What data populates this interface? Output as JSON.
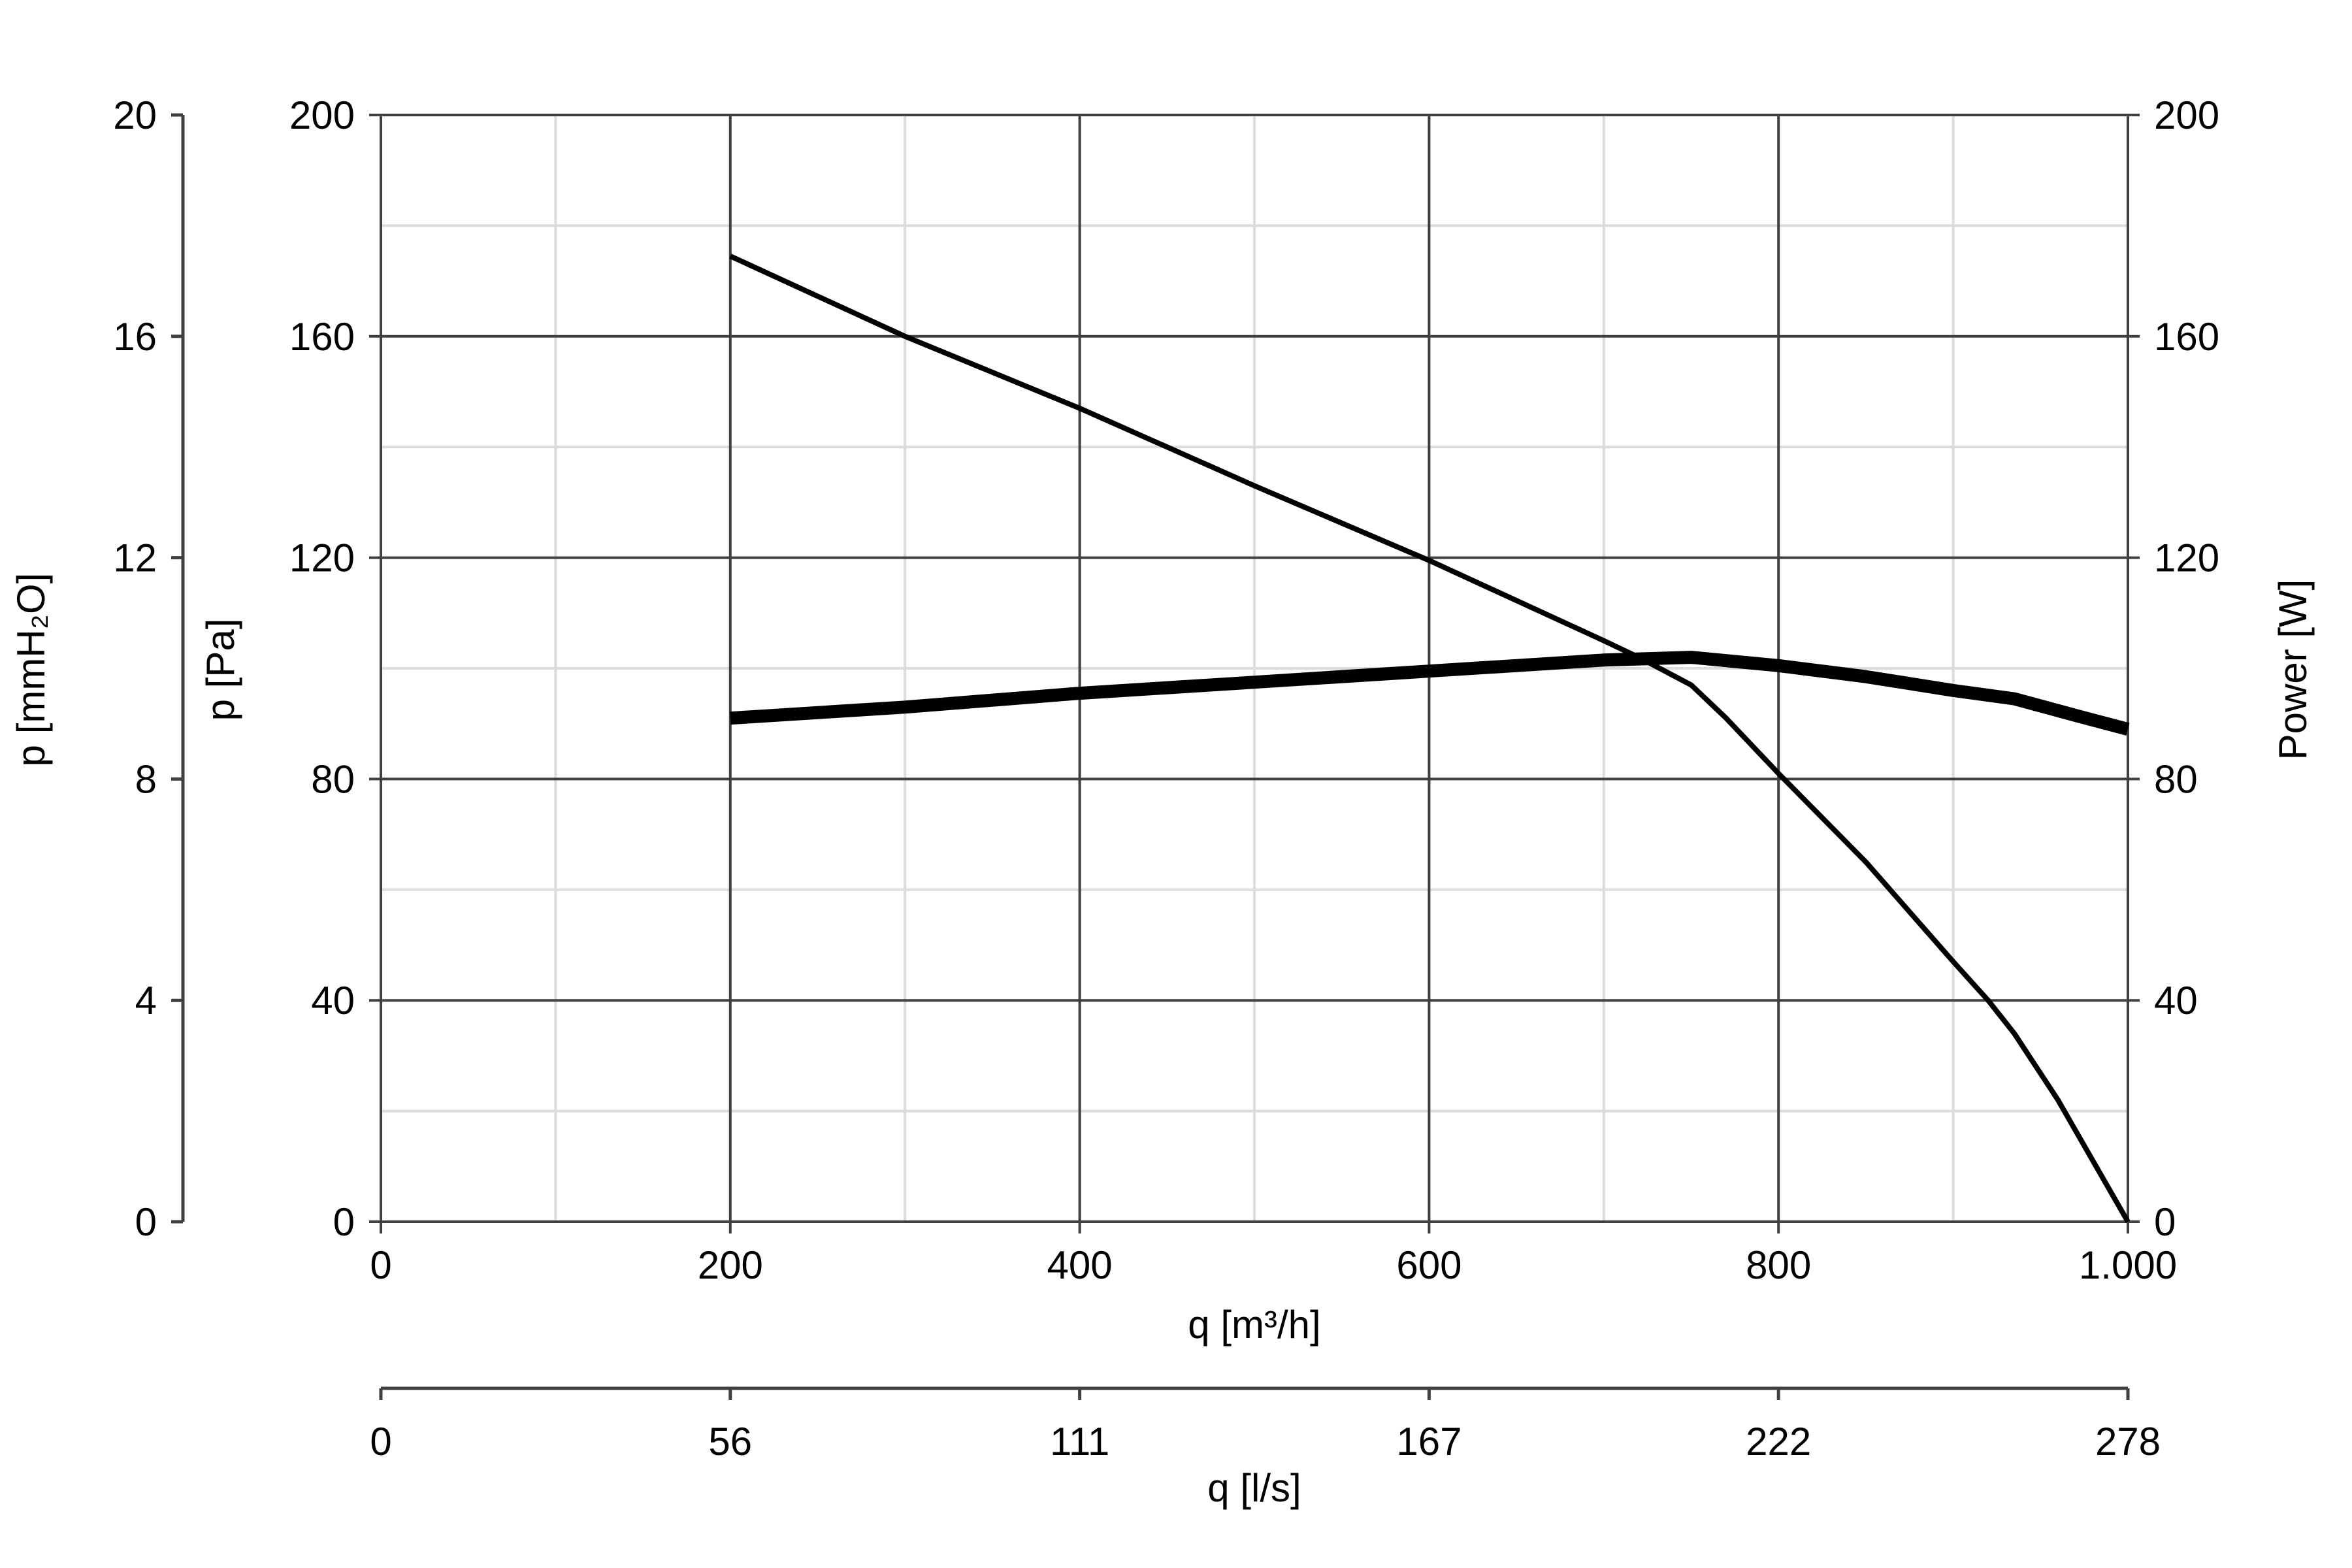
{
  "chart_data": {
    "type": "line",
    "x": {
      "label": "q [m³/h]",
      "range": [
        0,
        1000
      ],
      "major_ticks": [
        0,
        200,
        400,
        600,
        800,
        1000
      ],
      "tick_labels": [
        "0",
        "200",
        "400",
        "600",
        "800",
        "1.000"
      ],
      "minor_ticks": [
        100,
        300,
        500,
        700,
        900
      ]
    },
    "x_secondary": {
      "label": "q [l/s]",
      "tick_positions_m3h": [
        0,
        200,
        400,
        600,
        800,
        1000
      ],
      "tick_labels": [
        "0",
        "56",
        "111",
        "167",
        "222",
        "278"
      ]
    },
    "y_left": {
      "label": "p [Pa]",
      "range": [
        0,
        200
      ],
      "major_ticks": [
        0,
        40,
        80,
        120,
        160,
        200
      ],
      "tick_labels": [
        "0",
        "40",
        "80",
        "120",
        "160",
        "200"
      ],
      "minor_ticks": [
        20,
        60,
        100,
        140,
        180
      ]
    },
    "y_left_outer": {
      "label": "p [mmH₂O]",
      "range": [
        0,
        20
      ],
      "tick_labels": [
        "0",
        "4",
        "8",
        "12",
        "16",
        "20"
      ]
    },
    "y_right": {
      "label": "Power [W]",
      "range": [
        0,
        200
      ],
      "tick_labels": [
        "0",
        "40",
        "80",
        "120",
        "160",
        "200"
      ]
    },
    "grid": true,
    "series": [
      {
        "axis": "left",
        "line_weight": "thin",
        "color": "#000000",
        "x": [
          200,
          300,
          400,
          500,
          600,
          700,
          720,
          750,
          770,
          800,
          850,
          900,
          920,
          935,
          960,
          1000
        ],
        "y": [
          174.5,
          160,
          147,
          133,
          119.5,
          105,
          102,
          97,
          91,
          81,
          65,
          47,
          40,
          34,
          22,
          0
        ]
      },
      {
        "axis": "right",
        "line_weight": "thick",
        "color": "#000000",
        "x": [
          200,
          300,
          400,
          500,
          600,
          700,
          750,
          800,
          850,
          900,
          935,
          970,
          1000
        ],
        "y": [
          91,
          93,
          95.5,
          97.5,
          99.5,
          101.5,
          102,
          100.5,
          98.5,
          96,
          94.5,
          91.5,
          89
        ]
      }
    ]
  }
}
